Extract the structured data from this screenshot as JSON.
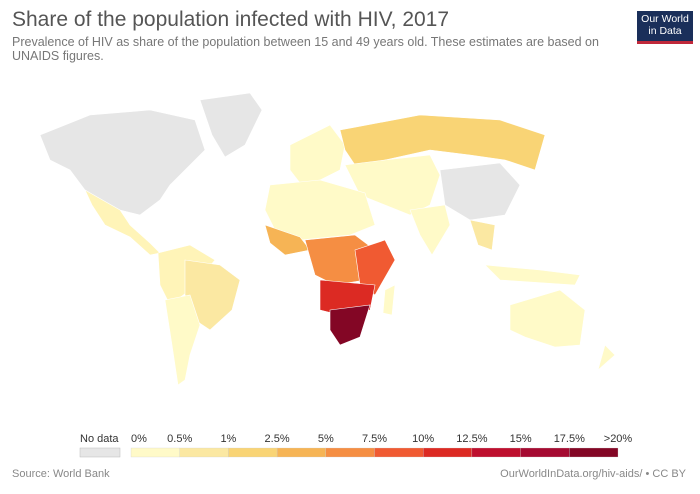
{
  "header": {
    "title": "Share of the population infected with HIV, 2017",
    "subtitle": "Prevalence of HIV as share of the population between 15 and 49 years old. These estimates are based on UNAIDS figures.",
    "logo": "Our World in Data"
  },
  "legend": {
    "no_data_label": "No data",
    "no_data_color": "#e6e6e6",
    "ticks": [
      "0%",
      "0.5%",
      "1%",
      "2.5%",
      "5%",
      "7.5%",
      "10%",
      "12.5%",
      "15%",
      "17.5%",
      ">20%"
    ],
    "colors": [
      "#fffac8",
      "#fbe8a2",
      "#f9d475",
      "#f6b455",
      "#f58e43",
      "#f05a32",
      "#dc2a23",
      "#be0f2e",
      "#a50a31",
      "#830625"
    ]
  },
  "footer": {
    "source": "Source: World Bank",
    "url": "OurWorldInData.org/hiv-aids/ • CC BY"
  }
}
